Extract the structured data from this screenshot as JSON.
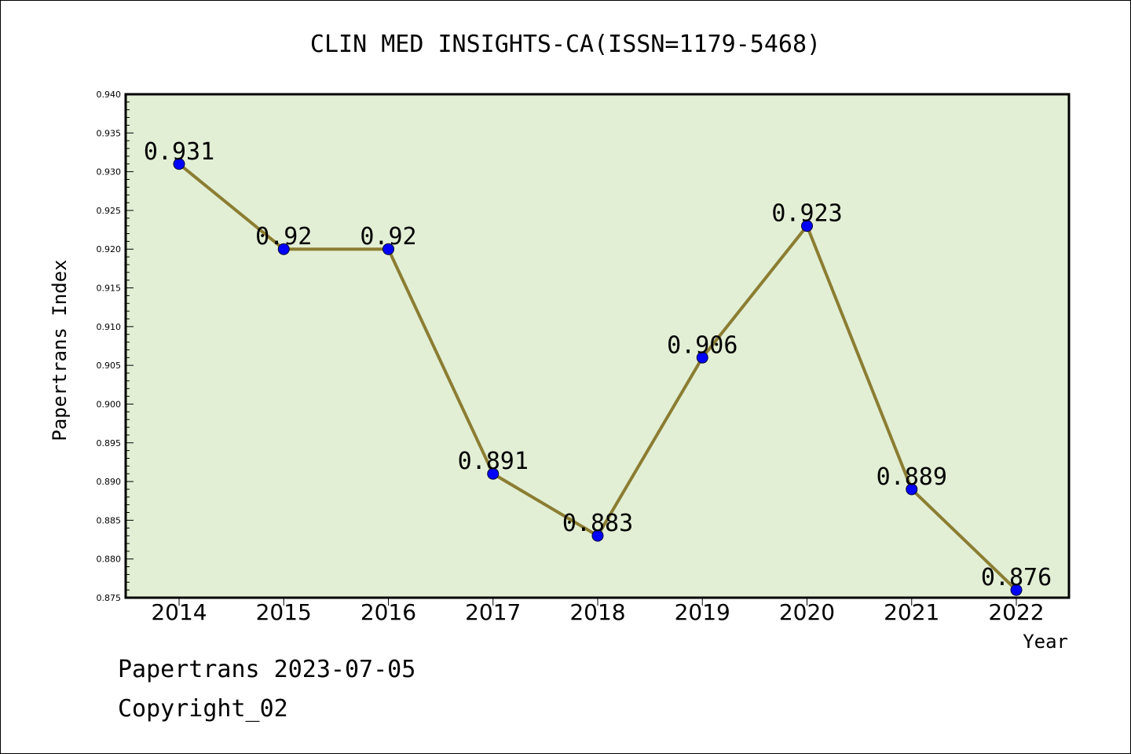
{
  "chart_data": {
    "type": "line",
    "title": "CLIN MED INSIGHTS-CA(ISSN=1179-5468)",
    "xlabel": "Year",
    "ylabel": "Papertrans Index",
    "categories": [
      "2014",
      "2015",
      "2016",
      "2017",
      "2018",
      "2019",
      "2020",
      "2021",
      "2022"
    ],
    "values": [
      0.931,
      0.92,
      0.92,
      0.891,
      0.883,
      0.906,
      0.923,
      0.889,
      0.876
    ],
    "data_labels": [
      "0.931",
      "0.92",
      "0.92",
      "0.891",
      "0.883",
      "0.906",
      "0.923",
      "0.889",
      "0.876"
    ],
    "ylim": [
      0.875,
      0.94
    ],
    "yticks": [
      "0.875",
      "0.880",
      "0.885",
      "0.890",
      "0.895",
      "0.900",
      "0.905",
      "0.910",
      "0.915",
      "0.920",
      "0.925",
      "0.930",
      "0.935",
      "0.940"
    ],
    "grid": false,
    "colors": {
      "line": "#8b7d32",
      "marker": "#0000ff",
      "plot_background": "#e2efd5"
    }
  },
  "footer": {
    "line1": "Papertrans 2023-07-05",
    "line2": "Copyright_02"
  }
}
